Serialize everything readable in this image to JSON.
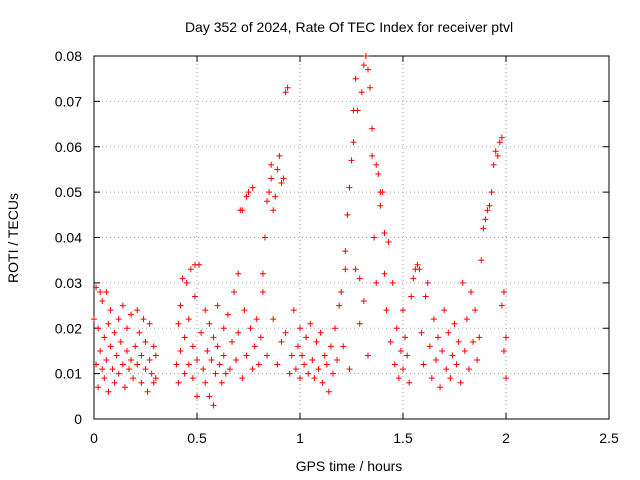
{
  "chart_data": {
    "type": "scatter",
    "title": "Day 352 of 2024, Rate Of TEC Index for receiver ptvl",
    "xlabel": "GPS time / hours",
    "ylabel": "ROTI / TECUs",
    "xlim": [
      0,
      2.5
    ],
    "ylim": [
      0,
      0.08
    ],
    "xticks": [
      0,
      0.5,
      1,
      1.5,
      2,
      2.5
    ],
    "xtick_labels": [
      "0",
      "0.5",
      "1",
      "1.5",
      "2",
      "2.5"
    ],
    "yticks": [
      0,
      0.01,
      0.02,
      0.03,
      0.04,
      0.05,
      0.06,
      0.07,
      0.08
    ],
    "ytick_labels": [
      "0",
      "0.01",
      "0.02",
      "0.03",
      "0.04",
      "0.05",
      "0.06",
      "0.07",
      "0.08"
    ],
    "grid": true,
    "marker": "+",
    "color": "#ff0000",
    "points": [
      [
        0.0,
        0.022
      ],
      [
        0.01,
        0.029
      ],
      [
        0.01,
        0.012
      ],
      [
        0.02,
        0.02
      ],
      [
        0.02,
        0.007
      ],
      [
        0.03,
        0.028
      ],
      [
        0.03,
        0.015
      ],
      [
        0.04,
        0.011
      ],
      [
        0.04,
        0.026
      ],
      [
        0.05,
        0.009
      ],
      [
        0.05,
        0.018
      ],
      [
        0.06,
        0.028
      ],
      [
        0.06,
        0.013
      ],
      [
        0.07,
        0.021
      ],
      [
        0.07,
        0.006
      ],
      [
        0.08,
        0.016
      ],
      [
        0.08,
        0.024
      ],
      [
        0.09,
        0.011
      ],
      [
        0.1,
        0.019
      ],
      [
        0.1,
        0.008
      ],
      [
        0.11,
        0.014
      ],
      [
        0.12,
        0.022
      ],
      [
        0.12,
        0.01
      ],
      [
        0.13,
        0.017
      ],
      [
        0.14,
        0.012
      ],
      [
        0.14,
        0.025
      ],
      [
        0.15,
        0.007
      ],
      [
        0.16,
        0.015
      ],
      [
        0.16,
        0.02
      ],
      [
        0.17,
        0.011
      ],
      [
        0.18,
        0.013
      ],
      [
        0.18,
        0.023
      ],
      [
        0.19,
        0.009
      ],
      [
        0.2,
        0.016
      ],
      [
        0.21,
        0.024
      ],
      [
        0.21,
        0.012
      ],
      [
        0.22,
        0.019
      ],
      [
        0.23,
        0.008
      ],
      [
        0.23,
        0.014
      ],
      [
        0.24,
        0.022
      ],
      [
        0.25,
        0.011
      ],
      [
        0.25,
        0.017
      ],
      [
        0.26,
        0.006
      ],
      [
        0.27,
        0.021
      ],
      [
        0.27,
        0.013
      ],
      [
        0.28,
        0.01
      ],
      [
        0.29,
        0.016
      ],
      [
        0.29,
        0.008
      ],
      [
        0.3,
        0.014
      ],
      [
        0.3,
        0.009
      ],
      [
        0.4,
        0.012
      ],
      [
        0.41,
        0.021
      ],
      [
        0.41,
        0.008
      ],
      [
        0.42,
        0.025
      ],
      [
        0.42,
        0.015
      ],
      [
        0.43,
        0.031
      ],
      [
        0.44,
        0.01
      ],
      [
        0.44,
        0.018
      ],
      [
        0.45,
        0.03
      ],
      [
        0.46,
        0.012
      ],
      [
        0.46,
        0.022
      ],
      [
        0.47,
        0.033
      ],
      [
        0.48,
        0.009
      ],
      [
        0.48,
        0.016
      ],
      [
        0.49,
        0.034
      ],
      [
        0.49,
        0.027
      ],
      [
        0.5,
        0.013
      ],
      [
        0.5,
        0.005
      ],
      [
        0.51,
        0.034
      ],
      [
        0.52,
        0.019
      ],
      [
        0.53,
        0.011
      ],
      [
        0.54,
        0.024
      ],
      [
        0.54,
        0.008
      ],
      [
        0.55,
        0.015
      ],
      [
        0.56,
        0.021
      ],
      [
        0.56,
        0.005
      ],
      [
        0.57,
        0.013
      ],
      [
        0.58,
        0.018
      ],
      [
        0.58,
        0.003
      ],
      [
        0.59,
        0.01
      ],
      [
        0.6,
        0.025
      ],
      [
        0.6,
        0.016
      ],
      [
        0.61,
        0.012
      ],
      [
        0.62,
        0.008
      ],
      [
        0.63,
        0.02
      ],
      [
        0.63,
        0.014
      ],
      [
        0.64,
        0.01
      ],
      [
        0.65,
        0.023
      ],
      [
        0.66,
        0.011
      ],
      [
        0.67,
        0.017
      ],
      [
        0.68,
        0.028
      ],
      [
        0.69,
        0.013
      ],
      [
        0.7,
        0.032
      ],
      [
        0.7,
        0.019
      ],
      [
        0.71,
        0.046
      ],
      [
        0.72,
        0.009
      ],
      [
        0.72,
        0.046
      ],
      [
        0.73,
        0.024
      ],
      [
        0.74,
        0.049
      ],
      [
        0.74,
        0.014
      ],
      [
        0.75,
        0.05
      ],
      [
        0.76,
        0.02
      ],
      [
        0.77,
        0.011
      ],
      [
        0.77,
        0.051
      ],
      [
        0.78,
        0.016
      ],
      [
        0.79,
        0.022
      ],
      [
        0.8,
        0.012
      ],
      [
        0.81,
        0.018
      ],
      [
        0.82,
        0.028
      ],
      [
        0.82,
        0.032
      ],
      [
        0.83,
        0.04
      ],
      [
        0.84,
        0.014
      ],
      [
        0.84,
        0.048
      ],
      [
        0.85,
        0.05
      ],
      [
        0.86,
        0.056
      ],
      [
        0.86,
        0.053
      ],
      [
        0.87,
        0.022
      ],
      [
        0.87,
        0.046
      ],
      [
        0.88,
        0.049
      ],
      [
        0.89,
        0.055
      ],
      [
        0.89,
        0.012
      ],
      [
        0.9,
        0.058
      ],
      [
        0.91,
        0.052
      ],
      [
        0.91,
        0.017
      ],
      [
        0.92,
        0.053
      ],
      [
        0.93,
        0.072
      ],
      [
        0.93,
        0.019
      ],
      [
        0.94,
        0.073
      ],
      [
        0.95,
        0.01
      ],
      [
        0.96,
        0.014
      ],
      [
        0.97,
        0.024
      ],
      [
        0.98,
        0.011
      ],
      [
        0.99,
        0.016
      ],
      [
        1.0,
        0.02
      ],
      [
        1.0,
        0.009
      ],
      [
        1.01,
        0.014
      ],
      [
        1.02,
        0.012
      ],
      [
        1.03,
        0.018
      ],
      [
        1.04,
        0.01
      ],
      [
        1.05,
        0.021
      ],
      [
        1.06,
        0.013
      ],
      [
        1.07,
        0.009
      ],
      [
        1.08,
        0.017
      ],
      [
        1.09,
        0.011
      ],
      [
        1.1,
        0.019
      ],
      [
        1.11,
        0.008
      ],
      [
        1.12,
        0.014
      ],
      [
        1.13,
        0.012
      ],
      [
        1.14,
        0.006
      ],
      [
        1.15,
        0.016
      ],
      [
        1.16,
        0.01
      ],
      [
        1.17,
        0.02
      ],
      [
        1.18,
        0.013
      ],
      [
        1.19,
        0.025
      ],
      [
        1.2,
        0.028
      ],
      [
        1.21,
        0.016
      ],
      [
        1.22,
        0.033
      ],
      [
        1.22,
        0.037
      ],
      [
        1.23,
        0.045
      ],
      [
        1.24,
        0.011
      ],
      [
        1.24,
        0.051
      ],
      [
        1.25,
        0.057
      ],
      [
        1.26,
        0.061
      ],
      [
        1.26,
        0.068
      ],
      [
        1.27,
        0.075
      ],
      [
        1.27,
        0.033
      ],
      [
        1.28,
        0.068
      ],
      [
        1.29,
        0.021
      ],
      [
        1.29,
        0.031
      ],
      [
        1.3,
        0.072
      ],
      [
        1.31,
        0.078
      ],
      [
        1.31,
        0.026
      ],
      [
        1.32,
        0.08
      ],
      [
        1.33,
        0.077
      ],
      [
        1.33,
        0.014
      ],
      [
        1.34,
        0.073
      ],
      [
        1.35,
        0.064
      ],
      [
        1.35,
        0.058
      ],
      [
        1.36,
        0.04
      ],
      [
        1.37,
        0.056
      ],
      [
        1.37,
        0.03
      ],
      [
        1.38,
        0.054
      ],
      [
        1.39,
        0.05
      ],
      [
        1.39,
        0.047
      ],
      [
        1.4,
        0.05
      ],
      [
        1.41,
        0.041
      ],
      [
        1.41,
        0.032
      ],
      [
        1.42,
        0.024
      ],
      [
        1.43,
        0.039
      ],
      [
        1.44,
        0.017
      ],
      [
        1.45,
        0.03
      ],
      [
        1.46,
        0.012
      ],
      [
        1.47,
        0.02
      ],
      [
        1.48,
        0.009
      ],
      [
        1.49,
        0.015
      ],
      [
        1.5,
        0.024
      ],
      [
        1.5,
        0.011
      ],
      [
        1.51,
        0.018
      ],
      [
        1.52,
        0.014
      ],
      [
        1.53,
        0.008
      ],
      [
        1.54,
        0.027
      ],
      [
        1.55,
        0.031
      ],
      [
        1.56,
        0.033
      ],
      [
        1.57,
        0.034
      ],
      [
        1.58,
        0.033
      ],
      [
        1.59,
        0.019
      ],
      [
        1.6,
        0.012
      ],
      [
        1.61,
        0.027
      ],
      [
        1.62,
        0.03
      ],
      [
        1.63,
        0.016
      ],
      [
        1.64,
        0.009
      ],
      [
        1.65,
        0.022
      ],
      [
        1.66,
        0.013
      ],
      [
        1.67,
        0.018
      ],
      [
        1.68,
        0.007
      ],
      [
        1.69,
        0.015
      ],
      [
        1.7,
        0.024
      ],
      [
        1.71,
        0.011
      ],
      [
        1.72,
        0.019
      ],
      [
        1.73,
        0.009
      ],
      [
        1.74,
        0.014
      ],
      [
        1.75,
        0.021
      ],
      [
        1.76,
        0.012
      ],
      [
        1.77,
        0.017
      ],
      [
        1.78,
        0.008
      ],
      [
        1.79,
        0.03
      ],
      [
        1.8,
        0.015
      ],
      [
        1.81,
        0.022
      ],
      [
        1.82,
        0.011
      ],
      [
        1.83,
        0.028
      ],
      [
        1.84,
        0.017
      ],
      [
        1.85,
        0.024
      ],
      [
        1.86,
        0.013
      ],
      [
        1.87,
        0.018
      ],
      [
        1.88,
        0.035
      ],
      [
        1.89,
        0.042
      ],
      [
        1.9,
        0.044
      ],
      [
        1.91,
        0.046
      ],
      [
        1.92,
        0.047
      ],
      [
        1.93,
        0.05
      ],
      [
        1.94,
        0.056
      ],
      [
        1.95,
        0.059
      ],
      [
        1.96,
        0.058
      ],
      [
        1.97,
        0.061
      ],
      [
        1.98,
        0.062
      ],
      [
        1.98,
        0.025
      ],
      [
        1.99,
        0.028
      ],
      [
        1.99,
        0.015
      ],
      [
        2.0,
        0.009
      ],
      [
        2.0,
        0.018
      ]
    ]
  }
}
